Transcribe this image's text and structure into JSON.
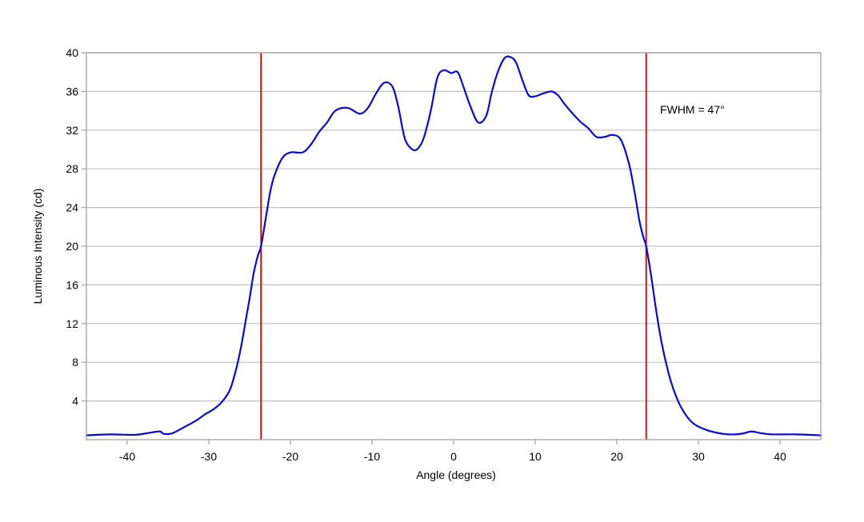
{
  "chart_data": {
    "type": "line",
    "title": "",
    "xlabel": "Angle (degrees)",
    "ylabel": "Luminous Intensity (cd)",
    "xlim": [
      -45,
      45
    ],
    "ylim": [
      0,
      40
    ],
    "x_ticks": [
      -40,
      -30,
      -20,
      -10,
      0,
      10,
      20,
      30,
      40
    ],
    "x_tick_labels": [
      "-40",
      "-30",
      "-20",
      "-10",
      "0",
      "10",
      "20",
      "30",
      "40"
    ],
    "y_ticks": [
      4,
      8,
      12,
      16,
      20,
      24,
      28,
      32,
      36,
      40
    ],
    "y_tick_labels": [
      "4",
      "8",
      "12",
      "16",
      "20",
      "24",
      "28",
      "32",
      "36",
      "40"
    ],
    "grid": "horizontal",
    "colors": {
      "curve": "#0a0ad2",
      "markers": "#cc0000",
      "grid": "#c0c0c0",
      "frame": "#a0a0a0"
    },
    "series": [
      {
        "x": [
          -45,
          -42,
          -39,
          -37,
          -36,
          -35.5,
          -34.5,
          -33,
          -31.5,
          -30.5,
          -29.5,
          -28.5,
          -27.5,
          -27,
          -26.5,
          -26,
          -25.5,
          -25,
          -24.5,
          -24,
          -23.6,
          -23,
          -22.5,
          -22,
          -21,
          -20,
          -18.5,
          -17.5,
          -16.5,
          -15.5,
          -14.5,
          -13,
          -11.5,
          -10.5,
          -9.5,
          -8.5,
          -7.5,
          -6.8,
          -6,
          -5.2,
          -4.5,
          -3.7,
          -2.8,
          -2,
          -1.2,
          -0.3,
          0.5,
          1.2,
          2,
          3,
          4,
          4.7,
          5.5,
          6.3,
          7.1,
          7.7,
          8.5,
          9.2,
          10,
          11,
          12,
          12.8,
          13.5,
          14.5,
          15.5,
          16.5,
          17.5,
          18.5,
          19.5,
          20.5,
          21.5,
          22.2,
          22.8,
          23.3,
          23.6,
          24.2,
          24.8,
          25.5,
          26.5,
          27.5,
          28.5,
          29.5,
          31,
          33,
          34.5,
          35.5,
          36.5,
          37.5,
          39,
          42,
          45
        ],
        "values": [
          0.45,
          0.55,
          0.5,
          0.75,
          0.85,
          0.6,
          0.65,
          1.3,
          2.0,
          2.6,
          3.1,
          3.8,
          5.0,
          6.2,
          7.8,
          9.8,
          12.2,
          14.6,
          17.2,
          19.0,
          20.0,
          23.0,
          25.5,
          27.2,
          29.1,
          29.7,
          29.7,
          30.5,
          31.8,
          32.8,
          34.0,
          34.3,
          33.7,
          34.3,
          35.8,
          36.9,
          36.5,
          34.5,
          31.2,
          30.1,
          30.0,
          31.1,
          34.0,
          37.4,
          38.2,
          37.9,
          38.0,
          36.5,
          34.6,
          32.8,
          33.5,
          36.0,
          38.2,
          39.5,
          39.5,
          38.9,
          37.0,
          35.6,
          35.5,
          35.8,
          36.0,
          35.6,
          34.8,
          33.8,
          32.9,
          32.2,
          31.3,
          31.3,
          31.5,
          31.0,
          28.5,
          25.5,
          22.5,
          20.8,
          20.0,
          17.0,
          13.5,
          10.0,
          6.4,
          4.0,
          2.5,
          1.6,
          1.0,
          0.6,
          0.55,
          0.65,
          0.85,
          0.7,
          0.55,
          0.55,
          0.45
        ]
      }
    ],
    "vertical_markers": [
      -23.6,
      23.6
    ],
    "annotation": {
      "text": "FWHM = 47°",
      "x": 25.3,
      "y": 33.7
    }
  }
}
